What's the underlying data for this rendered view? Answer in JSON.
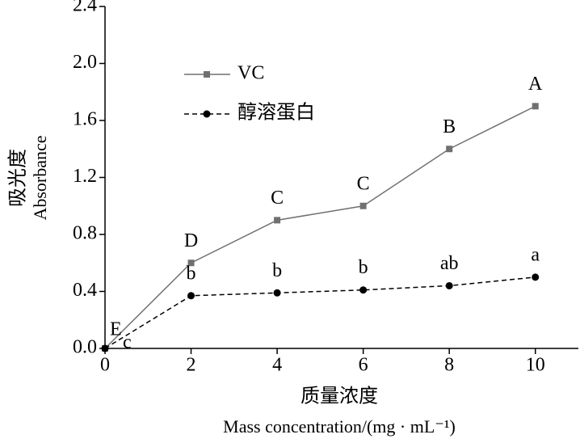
{
  "chart_data": {
    "type": "line",
    "x_label": "质量浓度",
    "x_label_en": "Mass concentration/(mg · mL⁻¹)",
    "y_label": "吸光度",
    "y_label_en": "Absorbance",
    "x": [
      0,
      2,
      4,
      6,
      8,
      10
    ],
    "series": [
      {
        "name": "VC",
        "color": "#707070",
        "marker": "square",
        "dashed": false,
        "values": [
          0,
          0.6,
          0.9,
          1.0,
          1.4,
          1.7
        ],
        "point_labels": [
          "E",
          "D",
          "C",
          "C",
          "B",
          "A"
        ]
      },
      {
        "name": "醇溶蛋白",
        "color": "#000000",
        "marker": "circle",
        "dashed": true,
        "values": [
          0,
          0.37,
          0.39,
          0.41,
          0.44,
          0.5
        ],
        "point_labels": [
          "c",
          "b",
          "b",
          "b",
          "ab",
          "a"
        ]
      }
    ],
    "xlim": [
      0,
      11
    ],
    "xticks": [
      0,
      2,
      4,
      6,
      8,
      10
    ],
    "ylim": [
      0,
      2.4
    ],
    "yticks": [
      {
        "value": 0,
        "label": "0.0"
      },
      {
        "value": 0.4,
        "label": "0.4"
      },
      {
        "value": 0.8,
        "label": "0.8"
      },
      {
        "value": 1.2,
        "label": "1.2"
      },
      {
        "value": 1.6,
        "label": "1.6"
      },
      {
        "value": 2.0,
        "label": "2.0"
      },
      {
        "value": 2.4,
        "label": "2.4"
      }
    ],
    "legend": "upper-left",
    "grid": false
  }
}
